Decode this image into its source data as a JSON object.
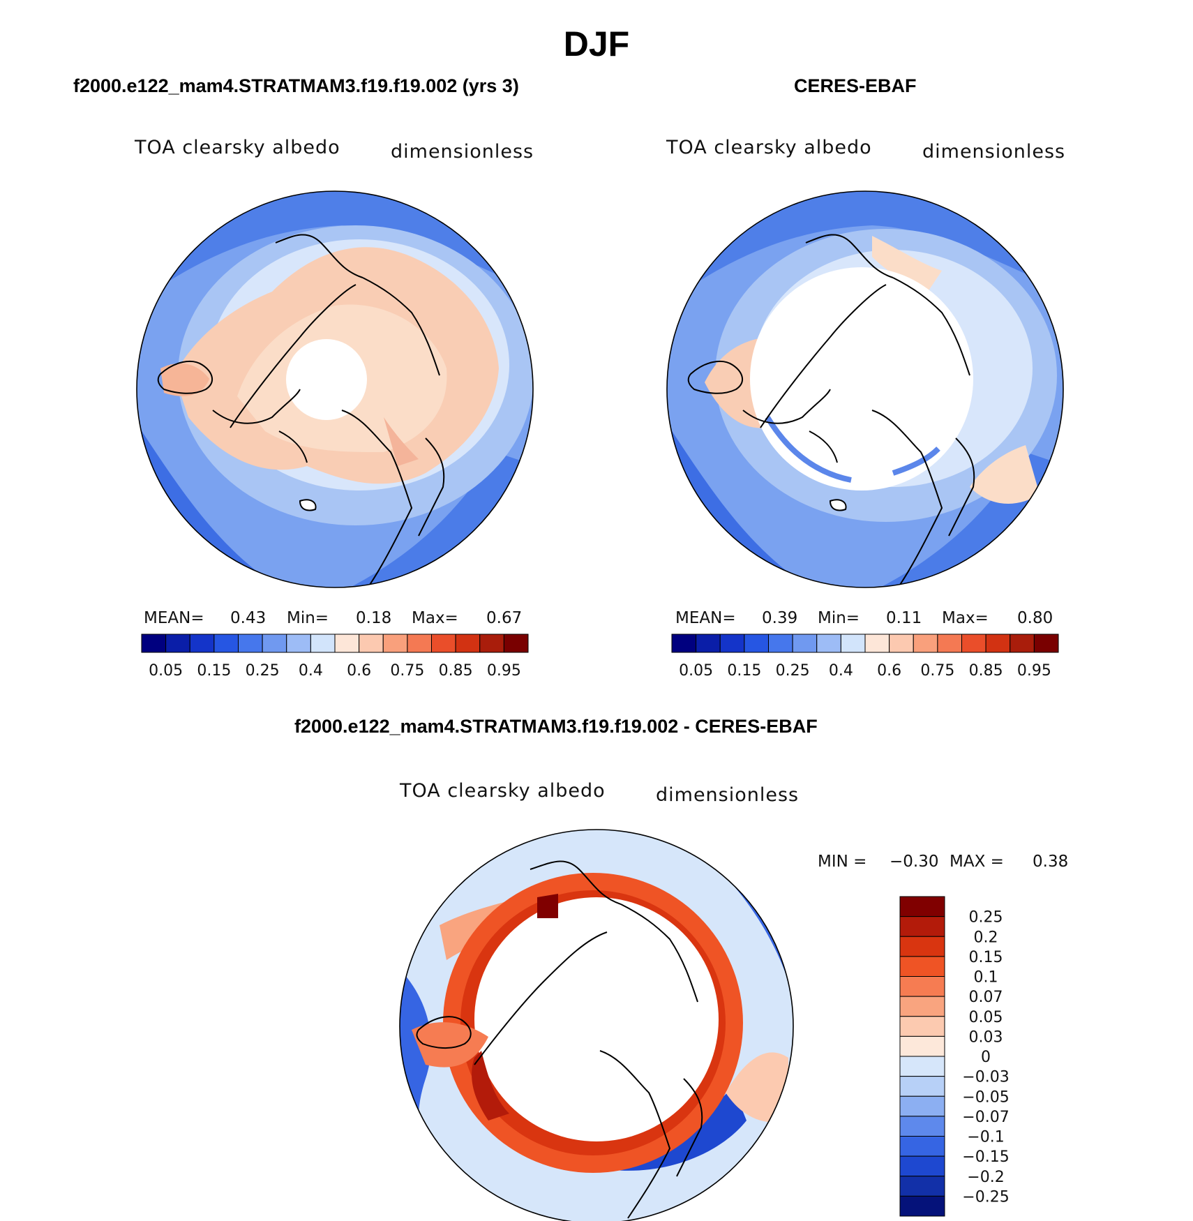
{
  "figure": {
    "title": "DJF"
  },
  "panel_model": {
    "title": "f2000.e122_mam4.STRATMAM3.f19.f19.002 (yrs 3)",
    "variable": "TOA clearsky albedo",
    "units": "dimensionless",
    "mean_label": "MEAN=",
    "mean": "0.43",
    "min_label": "Min=",
    "min": "0.18",
    "max_label": "Max=",
    "max": "0.67"
  },
  "panel_obs": {
    "title": "CERES-EBAF",
    "variable": "TOA clearsky albedo",
    "units": "dimensionless",
    "mean_label": "MEAN=",
    "mean": "0.39",
    "min_label": "Min=",
    "min": "0.11",
    "max_label": "Max=",
    "max": "0.80"
  },
  "panel_diff": {
    "title": "f2000.e122_mam4.STRATMAM3.f19.f19.002 - CERES-EBAF",
    "variable": "TOA clearsky albedo",
    "units": "dimensionless",
    "min_label": "MIN =",
    "min": "−0.30",
    "max_label": "MAX =",
    "max": "0.38"
  },
  "colorbar_abs": {
    "colors": [
      "#00007f",
      "#0a1ea8",
      "#1434c9",
      "#2656e3",
      "#4677ec",
      "#7099f0",
      "#9dbcf6",
      "#d2e4fb",
      "#fde6d8",
      "#fcc9b0",
      "#f9a07c",
      "#f47953",
      "#ea4e2a",
      "#d23212",
      "#a91d0b",
      "#790000"
    ],
    "tick_labels": [
      "0.05",
      "0.15",
      "0.25",
      "0.4",
      "0.6",
      "0.75",
      "0.85",
      "0.95"
    ]
  },
  "colorbar_diff": {
    "colors": [
      "#800000",
      "#b31b0a",
      "#d93510",
      "#ef5425",
      "#f67c52",
      "#f9a47f",
      "#fccab0",
      "#fde8da",
      "#d6e6fa",
      "#b7d0f7",
      "#8caff2",
      "#5e89ec",
      "#3665e3",
      "#1e48d0",
      "#1230a8",
      "#05127a"
    ],
    "tick_labels": [
      "0.25",
      "0.2",
      "0.15",
      "0.1",
      "0.07",
      "0.05",
      "0.03",
      "0",
      "−0.03",
      "−0.05",
      "−0.07",
      "−0.1",
      "−0.15",
      "−0.2",
      "−0.25"
    ]
  }
}
